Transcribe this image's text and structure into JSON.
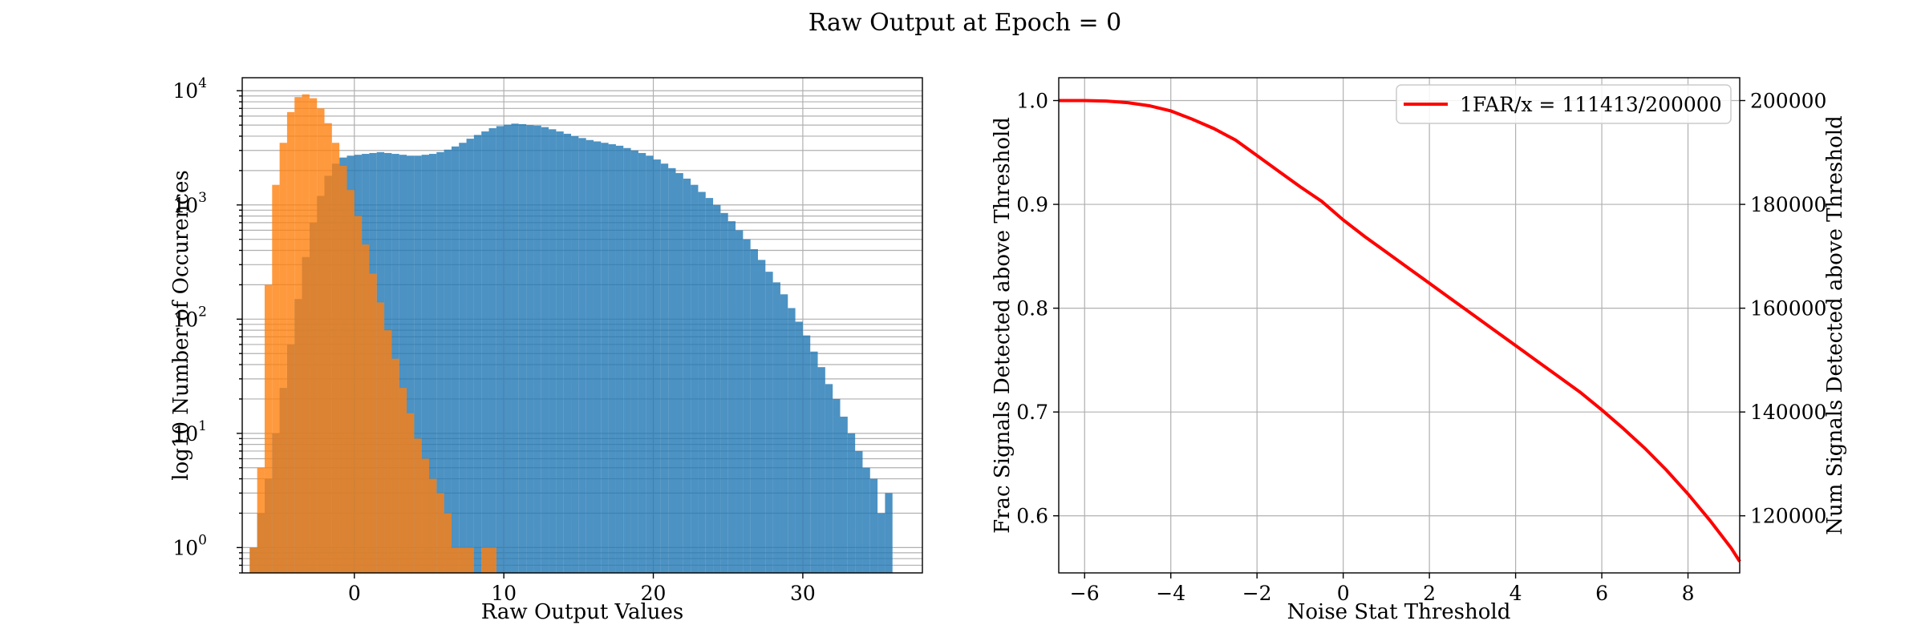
{
  "figure": {
    "title": "Raw Output at Epoch = 0"
  },
  "colors": {
    "signal": "#1f77b4",
    "noise": "#ff7f0e",
    "curve": "#ff0000",
    "grid": "#b0b0b0"
  },
  "chart_data": [
    {
      "type": "bar",
      "subtype": "histogram",
      "xlabel": "Raw Output Values",
      "ylabel": "log10 Number of Occurences",
      "xlim": [
        -7.5,
        38
      ],
      "ylim": [
        0.6,
        13000
      ],
      "yscale": "log",
      "grid": true,
      "xticks": [
        {
          "value": 0,
          "label": "0"
        },
        {
          "value": 10,
          "label": "10"
        },
        {
          "value": 20,
          "label": "20"
        },
        {
          "value": 30,
          "label": "30"
        }
      ],
      "yticks": [
        {
          "value": 1,
          "base": "10",
          "exp": "0"
        },
        {
          "value": 10,
          "base": "10",
          "exp": "1"
        },
        {
          "value": 100,
          "base": "10",
          "exp": "2"
        },
        {
          "value": 1000,
          "base": "10",
          "exp": "3"
        },
        {
          "value": 10000,
          "base": "10",
          "exp": "4"
        }
      ],
      "series": [
        {
          "color": "#1f77b4",
          "alpha": 0.8,
          "bins": [
            [
              -7,
              1
            ],
            [
              -6.5,
              2
            ],
            [
              -6,
              4
            ],
            [
              -5.5,
              10
            ],
            [
              -5,
              25
            ],
            [
              -4.5,
              60
            ],
            [
              -4,
              150
            ],
            [
              -3.5,
              350
            ],
            [
              -3,
              700
            ],
            [
              -2.5,
              1200
            ],
            [
              -2,
              1800
            ],
            [
              -1.5,
              2300
            ],
            [
              -1,
              2600
            ],
            [
              -0.5,
              2700
            ],
            [
              0,
              2750
            ],
            [
              0.5,
              2800
            ],
            [
              1,
              2850
            ],
            [
              1.5,
              2900
            ],
            [
              2,
              2850
            ],
            [
              2.5,
              2800
            ],
            [
              3,
              2750
            ],
            [
              3.5,
              2700
            ],
            [
              4,
              2700
            ],
            [
              4.5,
              2750
            ],
            [
              5,
              2800
            ],
            [
              5.5,
              2900
            ],
            [
              6,
              3050
            ],
            [
              6.5,
              3250
            ],
            [
              7,
              3500
            ],
            [
              7.5,
              3800
            ],
            [
              8,
              4100
            ],
            [
              8.5,
              4400
            ],
            [
              9,
              4700
            ],
            [
              9.5,
              4900
            ],
            [
              10,
              5050
            ],
            [
              10.5,
              5150
            ],
            [
              11,
              5100
            ],
            [
              11.5,
              5000
            ],
            [
              12,
              4950
            ],
            [
              12.5,
              4800
            ],
            [
              13,
              4600
            ],
            [
              13.5,
              4400
            ],
            [
              14,
              4200
            ],
            [
              14.5,
              4000
            ],
            [
              15,
              3850
            ],
            [
              15.5,
              3700
            ],
            [
              16,
              3600
            ],
            [
              16.5,
              3500
            ],
            [
              17,
              3400
            ],
            [
              17.5,
              3300
            ],
            [
              18,
              3150
            ],
            [
              18.5,
              3000
            ],
            [
              19,
              2850
            ],
            [
              19.5,
              2700
            ],
            [
              20,
              2500
            ],
            [
              20.5,
              2300
            ],
            [
              21,
              2100
            ],
            [
              21.5,
              1900
            ],
            [
              22,
              1700
            ],
            [
              22.5,
              1500
            ],
            [
              23,
              1300
            ],
            [
              23.5,
              1150
            ],
            [
              24,
              1000
            ],
            [
              24.5,
              850
            ],
            [
              25,
              720
            ],
            [
              25.5,
              600
            ],
            [
              26,
              500
            ],
            [
              26.5,
              410
            ],
            [
              27,
              330
            ],
            [
              27.5,
              260
            ],
            [
              28,
              210
            ],
            [
              28.5,
              165
            ],
            [
              29,
              125
            ],
            [
              29.5,
              95
            ],
            [
              30,
              72
            ],
            [
              30.5,
              52
            ],
            [
              31,
              38
            ],
            [
              31.5,
              27
            ],
            [
              32,
              20
            ],
            [
              32.5,
              14
            ],
            [
              33,
              10
            ],
            [
              33.5,
              7
            ],
            [
              34,
              5
            ],
            [
              34.5,
              4
            ],
            [
              35,
              2
            ],
            [
              35.5,
              3
            ]
          ]
        },
        {
          "color": "#ff7f0e",
          "alpha": 0.8,
          "bins": [
            [
              -7,
              1
            ],
            [
              -6.5,
              5
            ],
            [
              -6,
              200
            ],
            [
              -5.5,
              1500
            ],
            [
              -5,
              3500
            ],
            [
              -4.5,
              6500
            ],
            [
              -4,
              8800
            ],
            [
              -3.5,
              9300
            ],
            [
              -3,
              8600
            ],
            [
              -2.5,
              7000
            ],
            [
              -2,
              5200
            ],
            [
              -1.5,
              3500
            ],
            [
              -1,
              2200
            ],
            [
              -0.5,
              1350
            ],
            [
              0,
              800
            ],
            [
              0.5,
              450
            ],
            [
              1,
              250
            ],
            [
              1.5,
              140
            ],
            [
              2,
              80
            ],
            [
              2.5,
              45
            ],
            [
              3,
              25
            ],
            [
              3.5,
              15
            ],
            [
              4,
              9
            ],
            [
              4.5,
              6
            ],
            [
              5,
              4
            ],
            [
              5.5,
              3
            ],
            [
              6,
              2
            ],
            [
              6.5,
              1
            ],
            [
              7,
              1
            ],
            [
              7.5,
              1
            ],
            [
              8.5,
              1
            ],
            [
              9,
              1
            ]
          ]
        }
      ]
    },
    {
      "type": "line",
      "xlabel": "Noise Stat Threshold",
      "ylabel": "Frac Signals Detected above Threshold",
      "ylabel_right": "Num Signals Detected above Threshold",
      "xlim": [
        -6.6,
        9.2
      ],
      "ylim": [
        0.545,
        1.022
      ],
      "grid": true,
      "legend_position": "top-right",
      "xticks": [
        {
          "value": -6,
          "label": "−6"
        },
        {
          "value": -4,
          "label": "−4"
        },
        {
          "value": -2,
          "label": "−2"
        },
        {
          "value": 0,
          "label": "0"
        },
        {
          "value": 2,
          "label": "2"
        },
        {
          "value": 4,
          "label": "4"
        },
        {
          "value": 6,
          "label": "6"
        },
        {
          "value": 8,
          "label": "8"
        }
      ],
      "yticks": [
        {
          "value": 0.6,
          "label": "0.6"
        },
        {
          "value": 0.7,
          "label": "0.7"
        },
        {
          "value": 0.8,
          "label": "0.8"
        },
        {
          "value": 0.9,
          "label": "0.9"
        },
        {
          "value": 1.0,
          "label": "1.0"
        }
      ],
      "right_axis": {
        "ylim": [
          109000,
          204400
        ],
        "ticks": [
          {
            "value": 120000,
            "label": "120000"
          },
          {
            "value": 140000,
            "label": "140000"
          },
          {
            "value": 160000,
            "label": "160000"
          },
          {
            "value": 180000,
            "label": "180000"
          },
          {
            "value": 200000,
            "label": "200000"
          }
        ]
      },
      "series": [
        {
          "name": "1FAR/x = 111413/200000",
          "color": "#ff0000",
          "x": [
            -6.6,
            -6,
            -5.5,
            -5,
            -4.5,
            -4,
            -3.5,
            -3,
            -2.5,
            -2,
            -1.5,
            -1,
            -0.5,
            0,
            0.5,
            1,
            1.5,
            2,
            2.5,
            3,
            3.5,
            4,
            4.5,
            5,
            5.5,
            6,
            6.5,
            7,
            7.5,
            8,
            8.5,
            9,
            9.2
          ],
          "y": [
            1.0,
            1.0,
            0.9995,
            0.998,
            0.995,
            0.99,
            0.982,
            0.973,
            0.962,
            0.947,
            0.932,
            0.917,
            0.903,
            0.885,
            0.869,
            0.854,
            0.839,
            0.824,
            0.809,
            0.794,
            0.779,
            0.764,
            0.749,
            0.734,
            0.719,
            0.702,
            0.684,
            0.665,
            0.644,
            0.621,
            0.596,
            0.569,
            0.556
          ]
        }
      ]
    }
  ]
}
